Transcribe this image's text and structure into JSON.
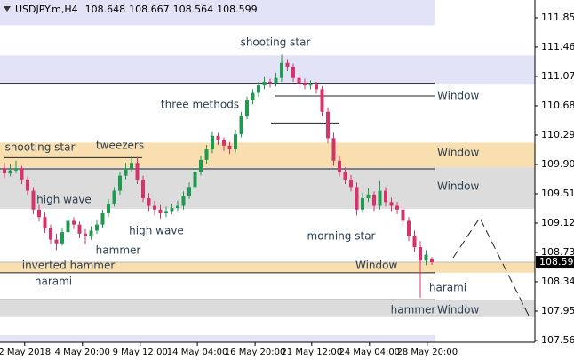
{
  "chart_data": {
    "type": "candlestick",
    "title": "USDJPY.m,H4",
    "up_color": "#1f9a4f",
    "down_color": "#d6336c",
    "ylim": [
      107.536,
      112.086
    ],
    "yticks": [
      {
        "value": 111.85,
        "label": "111.850"
      },
      {
        "value": 111.46,
        "label": "111.460"
      },
      {
        "value": 111.07,
        "label": "111.070"
      },
      {
        "value": 110.68,
        "label": "110.680"
      },
      {
        "value": 110.29,
        "label": "110.290"
      },
      {
        "value": 109.9,
        "label": "109.900"
      },
      {
        "value": 109.51,
        "label": "109.510"
      },
      {
        "value": 109.12,
        "label": "109.120"
      },
      {
        "value": 108.73,
        "label": "108.730"
      },
      {
        "value": 108.34,
        "label": "108.340"
      },
      {
        "value": 107.95,
        "label": "107.950"
      },
      {
        "value": 107.56,
        "label": "107.560"
      }
    ],
    "xticks": [
      {
        "value": 3.5,
        "label": "2 May 2018"
      },
      {
        "value": 13.5,
        "label": "4 May 20:00"
      },
      {
        "value": 23.5,
        "label": "9 May 12:00"
      },
      {
        "value": 33.4,
        "label": "14 May 04:00"
      },
      {
        "value": 43.4,
        "label": "16 May 20:00"
      },
      {
        "value": 53.2,
        "label": "21 May 12:00"
      },
      {
        "value": 63.2,
        "label": "24 May 04:00"
      },
      {
        "value": 73.2,
        "label": "28 May 20:00"
      }
    ],
    "zones": [
      {
        "low": 111.75,
        "high": 112.086,
        "color": "#e3e3f8"
      },
      {
        "low": 110.96,
        "high": 111.35,
        "color": "#e3e3f8"
      },
      {
        "low": 109.86,
        "high": 110.19,
        "color": "#f9dfb0"
      },
      {
        "low": 109.31,
        "high": 109.86,
        "color": "#dcdcdc"
      },
      {
        "low": 108.46,
        "high": 108.6,
        "color": "#f9dfb0"
      },
      {
        "low": 107.87,
        "high": 108.1,
        "color": "#dcdcdc"
      },
      {
        "low": 107.536,
        "high": 107.63,
        "color": "#e3e3f8"
      }
    ],
    "levels": [
      110.98,
      110.81,
      110.45,
      109.99,
      109.84,
      108.46,
      108.1
    ],
    "annotations": [
      {
        "text": "shooting star",
        "color": "#2c3e50"
      },
      {
        "text": "three methods",
        "color": "#2c3e50"
      },
      {
        "text": "shooting star",
        "color": "#2c3e50"
      },
      {
        "text": "tweezers",
        "color": "#2c3e50"
      },
      {
        "text": "high wave",
        "color": "#2c3e50"
      },
      {
        "text": "high wave",
        "color": "#2c3e50"
      },
      {
        "text": "hammer",
        "color": "#2c3e50"
      },
      {
        "text": "morning star",
        "color": "#2c3e50"
      },
      {
        "text": "inverted hammer",
        "color": "#2c3e50"
      },
      {
        "text": "harami",
        "color": "#2c3e50"
      },
      {
        "text": "harami",
        "color": "#2c3e50"
      },
      {
        "text": "hammer",
        "color": "#2c3e50"
      },
      {
        "text": "Window",
        "color": "#7b8a99"
      },
      {
        "text": "Window",
        "color": "#f0a830"
      },
      {
        "text": "Window",
        "color": "#7b8a99"
      },
      {
        "text": "Window",
        "color": "#f0a830"
      },
      {
        "text": "Window",
        "color": "#7b8a99"
      }
    ],
    "candles": [
      [
        109.85,
        109.92,
        109.72,
        109.78
      ],
      [
        109.78,
        109.9,
        109.74,
        109.82
      ],
      [
        109.82,
        109.95,
        109.78,
        109.85
      ],
      [
        109.85,
        109.88,
        109.64,
        109.7
      ],
      [
        109.7,
        109.74,
        109.5,
        109.55
      ],
      [
        109.55,
        109.6,
        109.24,
        109.3
      ],
      [
        109.3,
        109.36,
        109.14,
        109.2
      ],
      [
        109.2,
        109.26,
        108.99,
        109.05
      ],
      [
        109.05,
        109.1,
        108.84,
        108.9
      ],
      [
        108.9,
        108.98,
        108.76,
        108.85
      ],
      [
        108.85,
        109.06,
        108.82,
        109.0
      ],
      [
        109.0,
        109.22,
        108.96,
        109.15
      ],
      [
        109.15,
        109.2,
        109.04,
        109.1
      ],
      [
        109.1,
        109.14,
        108.92,
        108.98
      ],
      [
        108.98,
        109.04,
        108.84,
        108.95
      ],
      [
        108.95,
        109.08,
        108.9,
        109.02
      ],
      [
        109.02,
        109.16,
        108.98,
        109.1
      ],
      [
        109.1,
        109.3,
        109.06,
        109.25
      ],
      [
        109.25,
        109.44,
        109.2,
        109.38
      ],
      [
        109.38,
        109.6,
        109.34,
        109.55
      ],
      [
        109.55,
        109.8,
        109.5,
        109.75
      ],
      [
        109.75,
        109.92,
        109.7,
        109.85
      ],
      [
        109.85,
        110.02,
        109.8,
        109.92
      ],
      [
        109.92,
        110.0,
        109.64,
        109.7
      ],
      [
        109.7,
        109.75,
        109.4,
        109.45
      ],
      [
        109.45,
        109.52,
        109.28,
        109.35
      ],
      [
        109.35,
        109.42,
        109.22,
        109.3
      ],
      [
        109.3,
        109.36,
        109.18,
        109.25
      ],
      [
        109.25,
        109.34,
        109.2,
        109.28
      ],
      [
        109.28,
        109.38,
        109.24,
        109.32
      ],
      [
        109.32,
        109.42,
        109.28,
        109.35
      ],
      [
        109.35,
        109.54,
        109.3,
        109.48
      ],
      [
        109.48,
        109.66,
        109.44,
        109.6
      ],
      [
        109.6,
        109.86,
        109.56,
        109.8
      ],
      [
        109.8,
        110.02,
        109.75,
        109.96
      ],
      [
        109.96,
        110.16,
        109.9,
        110.1
      ],
      [
        110.1,
        110.34,
        110.05,
        110.28
      ],
      [
        110.28,
        110.32,
        110.16,
        110.22
      ],
      [
        110.22,
        110.26,
        110.08,
        110.15
      ],
      [
        110.15,
        110.2,
        110.04,
        110.1
      ],
      [
        110.1,
        110.36,
        110.06,
        110.3
      ],
      [
        110.3,
        110.6,
        110.26,
        110.55
      ],
      [
        110.55,
        110.8,
        110.5,
        110.75
      ],
      [
        110.75,
        110.9,
        110.7,
        110.85
      ],
      [
        110.85,
        111.0,
        110.8,
        110.95
      ],
      [
        110.95,
        111.06,
        110.9,
        111.0
      ],
      [
        111.0,
        111.04,
        110.92,
        110.98
      ],
      [
        110.98,
        111.12,
        110.94,
        111.05
      ],
      [
        111.05,
        111.36,
        111.0,
        111.25
      ],
      [
        111.25,
        111.3,
        111.14,
        111.2
      ],
      [
        111.2,
        111.24,
        111.0,
        111.05
      ],
      [
        111.05,
        111.1,
        110.92,
        110.98
      ],
      [
        110.98,
        111.04,
        110.9,
        110.95
      ],
      [
        110.95,
        111.02,
        110.9,
        110.96
      ],
      [
        110.96,
        111.0,
        110.84,
        110.9
      ],
      [
        110.9,
        110.94,
        110.54,
        110.6
      ],
      [
        110.6,
        110.66,
        110.18,
        110.25
      ],
      [
        110.25,
        110.32,
        109.88,
        109.95
      ],
      [
        109.95,
        110.02,
        109.74,
        109.8
      ],
      [
        109.8,
        109.86,
        109.64,
        109.7
      ],
      [
        109.7,
        109.76,
        109.54,
        109.6
      ],
      [
        109.6,
        109.66,
        109.22,
        109.3
      ],
      [
        109.3,
        109.52,
        109.26,
        109.45
      ],
      [
        109.45,
        109.58,
        109.4,
        109.5
      ],
      [
        109.5,
        109.54,
        109.28,
        109.35
      ],
      [
        109.35,
        109.68,
        109.3,
        109.55
      ],
      [
        109.55,
        109.6,
        109.34,
        109.4
      ],
      [
        109.4,
        109.46,
        109.28,
        109.35
      ],
      [
        109.35,
        109.4,
        109.24,
        109.3
      ],
      [
        109.3,
        109.36,
        109.08,
        109.15
      ],
      [
        109.15,
        109.2,
        108.88,
        108.95
      ],
      [
        108.95,
        109.02,
        108.74,
        108.8
      ],
      [
        108.8,
        108.88,
        108.13,
        108.62
      ],
      [
        108.62,
        108.76,
        108.56,
        108.7
      ],
      [
        108.648,
        108.667,
        108.564,
        108.599
      ]
    ]
  }
}
